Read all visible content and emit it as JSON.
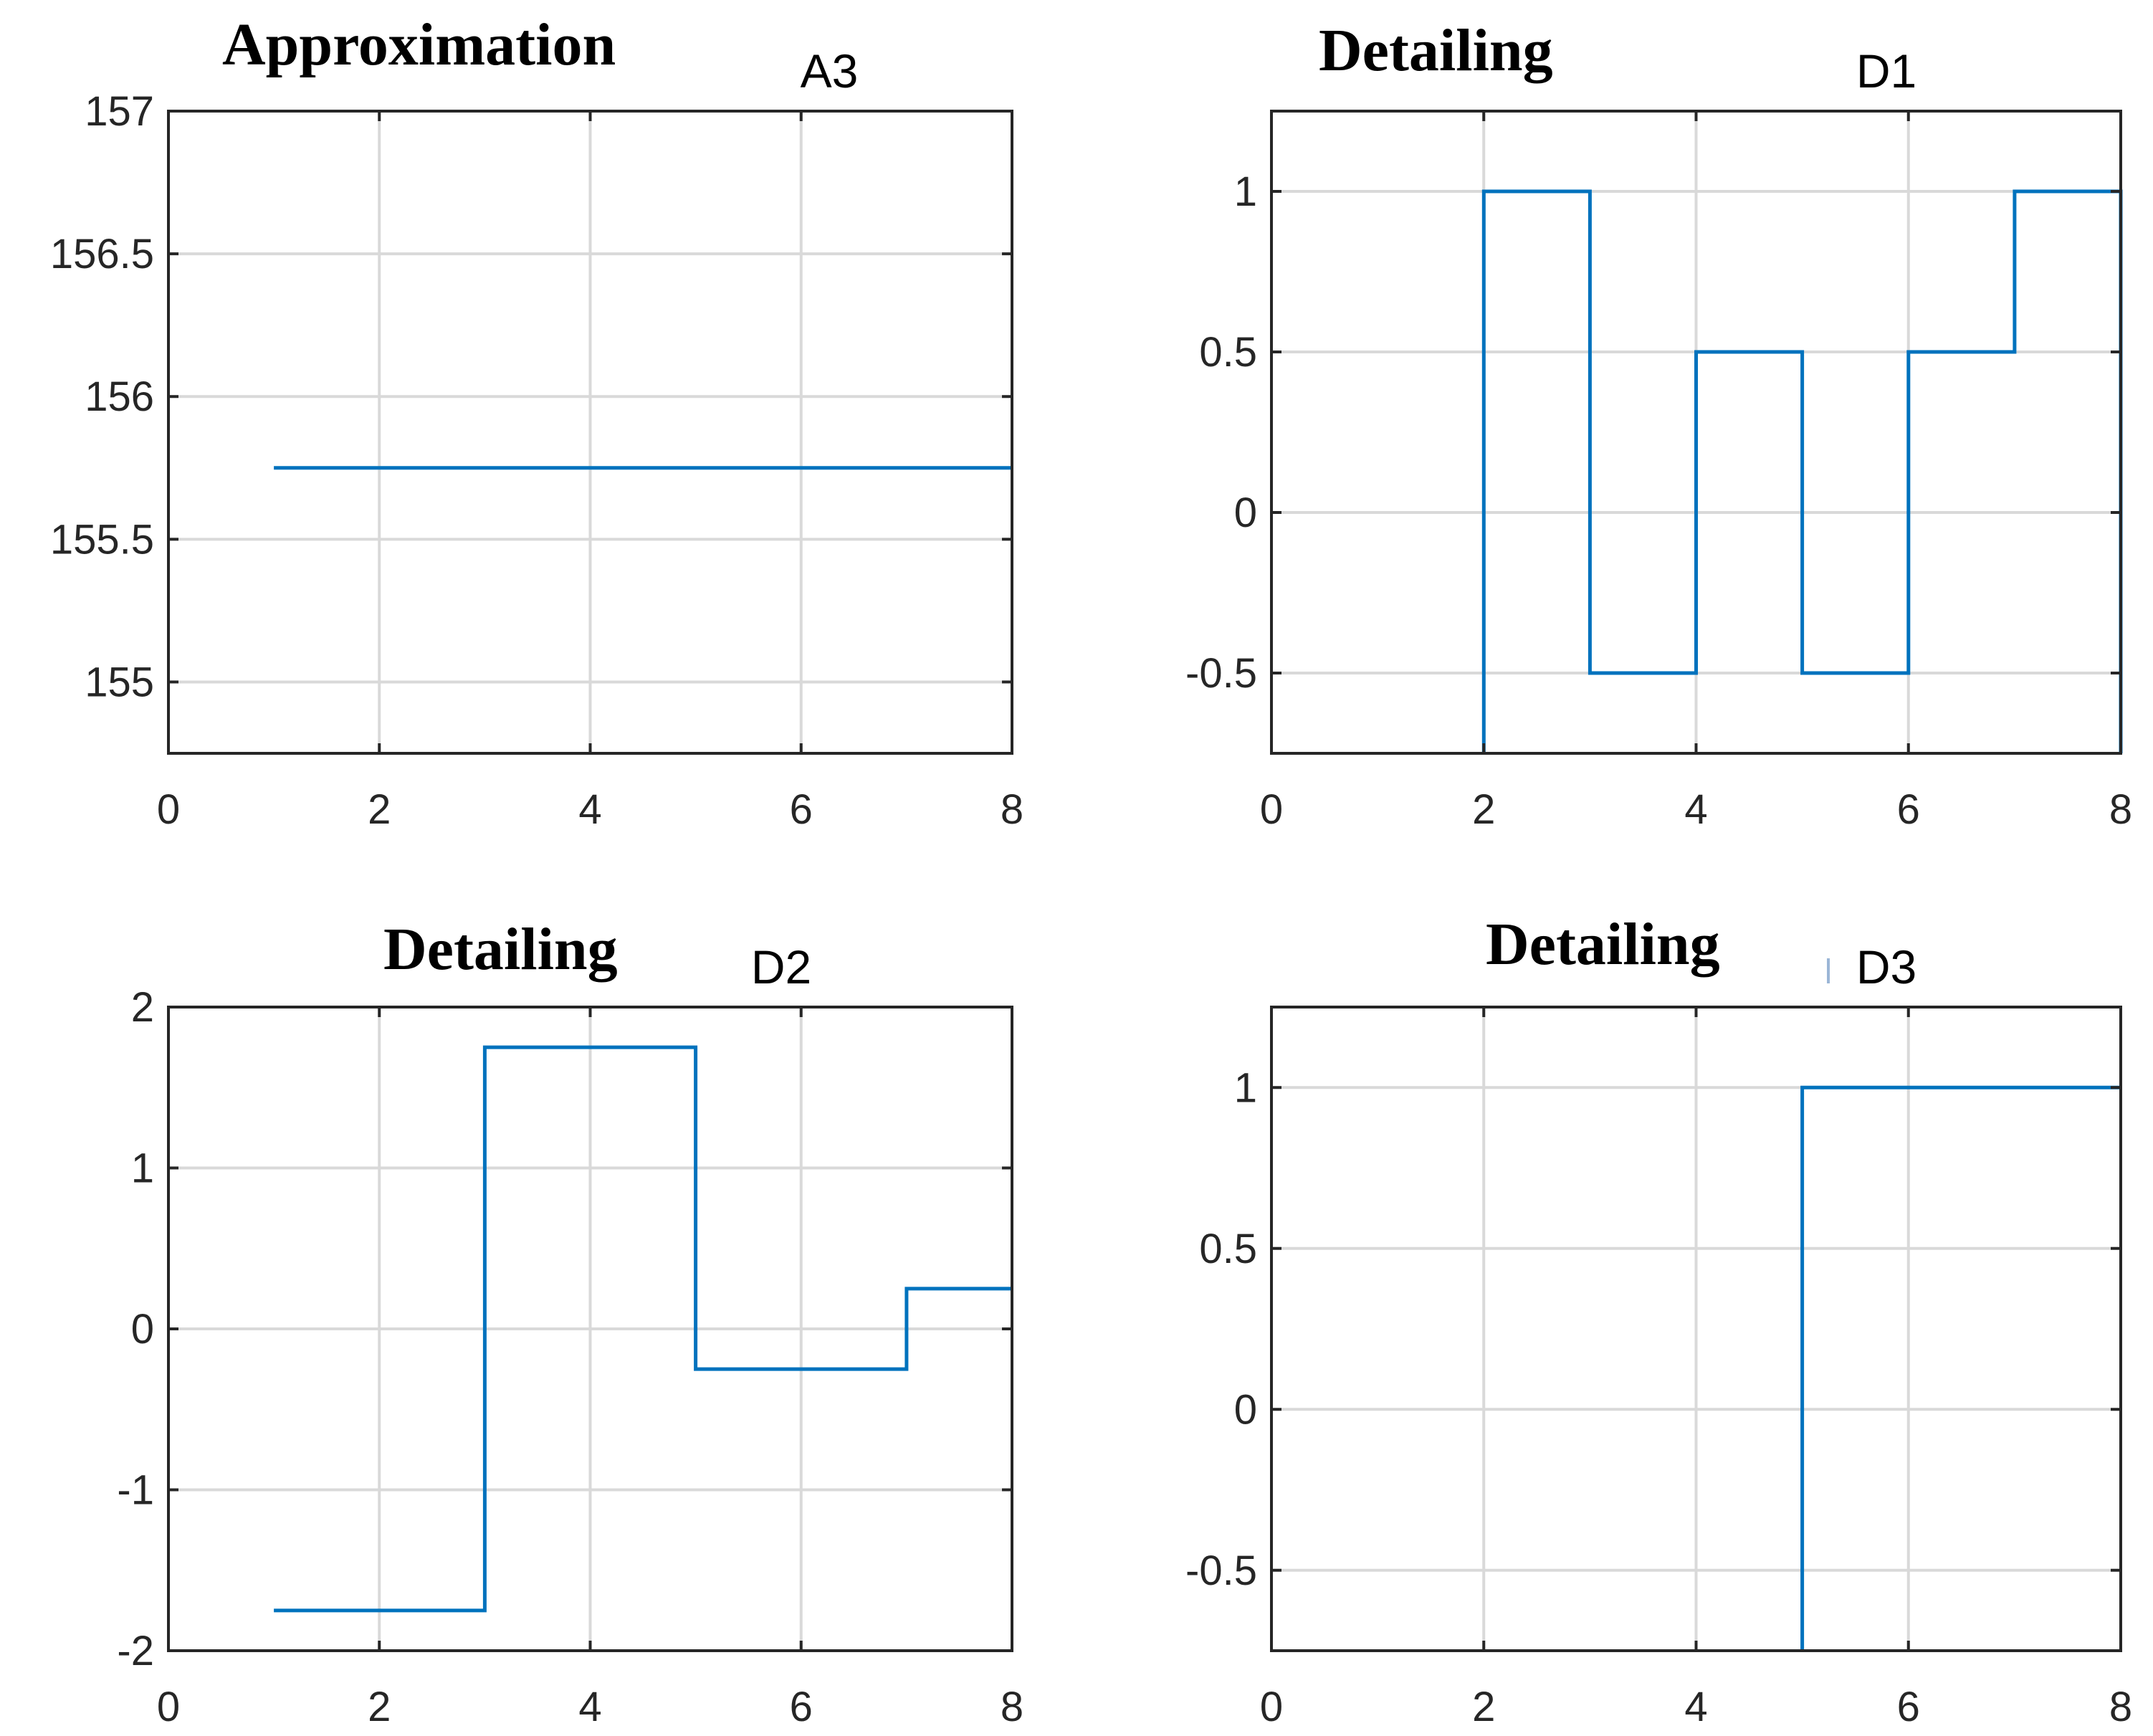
{
  "chart_data": [
    {
      "id": "a3",
      "type": "line",
      "step": true,
      "heading": "Approximation",
      "title": "A3",
      "xlabel": "",
      "ylabel": "",
      "xlim": [
        0,
        8
      ],
      "ylim": [
        154.75,
        157
      ],
      "xticks": [
        0,
        2,
        4,
        6,
        8
      ],
      "yticks": [
        155,
        155.5,
        156,
        156.5,
        157
      ],
      "yticklabels": [
        "155",
        "155.5",
        "156",
        "156.5",
        "157"
      ],
      "grid": true,
      "color": "#0072bd",
      "series": [
        {
          "name": "A3",
          "x": [
            1,
            8
          ],
          "y": [
            155.75,
            155.75
          ]
        }
      ]
    },
    {
      "id": "d1",
      "type": "line",
      "step": true,
      "heading": "Detailing",
      "title": "D1",
      "xlabel": "",
      "ylabel": "",
      "xlim": [
        0,
        8
      ],
      "ylim": [
        -0.75,
        1.25
      ],
      "xticks": [
        0,
        2,
        4,
        6,
        8
      ],
      "yticks": [
        -0.5,
        0,
        0.5,
        1
      ],
      "yticklabels": [
        "-0.5",
        "0",
        "0.5",
        "1"
      ],
      "grid": true,
      "color": "#0072bd",
      "series": [
        {
          "name": "D1",
          "x": [
            2,
            2,
            3,
            3,
            4,
            4,
            5,
            5,
            6,
            6,
            7,
            7,
            8,
            8
          ],
          "y": [
            -0.75,
            1,
            1,
            -0.5,
            -0.5,
            0.5,
            0.5,
            -0.5,
            -0.5,
            0.5,
            0.5,
            1,
            1,
            -0.75
          ]
        }
      ]
    },
    {
      "id": "d2",
      "type": "line",
      "step": true,
      "heading": "Detailing",
      "title": "D2",
      "xlabel": "",
      "ylabel": "",
      "xlim": [
        0,
        8
      ],
      "ylim": [
        -2,
        2
      ],
      "xticks": [
        0,
        2,
        4,
        6,
        8
      ],
      "yticks": [
        -2,
        -1,
        0,
        1,
        2
      ],
      "yticklabels": [
        "-2",
        "-1",
        "0",
        "1",
        "2"
      ],
      "grid": true,
      "color": "#0072bd",
      "series": [
        {
          "name": "D2",
          "x": [
            1,
            3,
            3,
            5,
            5,
            7,
            7,
            8
          ],
          "y": [
            -1.75,
            -1.75,
            1.75,
            1.75,
            -0.25,
            -0.25,
            0.25,
            0.25
          ]
        }
      ]
    },
    {
      "id": "d3",
      "type": "line",
      "step": true,
      "heading": "Detailing",
      "title": "D3",
      "xlabel": "",
      "ylabel": "",
      "xlim": [
        0,
        8
      ],
      "ylim": [
        -0.75,
        1.25
      ],
      "xticks": [
        0,
        2,
        4,
        6,
        8
      ],
      "yticks": [
        -0.5,
        0,
        0.5,
        1
      ],
      "yticklabels": [
        "-0.5",
        "0",
        "0.5",
        "1"
      ],
      "grid": true,
      "color": "#0072bd",
      "series": [
        {
          "name": "D3",
          "x": [
            5,
            5,
            8
          ],
          "y": [
            -0.75,
            1,
            1
          ]
        }
      ]
    }
  ]
}
